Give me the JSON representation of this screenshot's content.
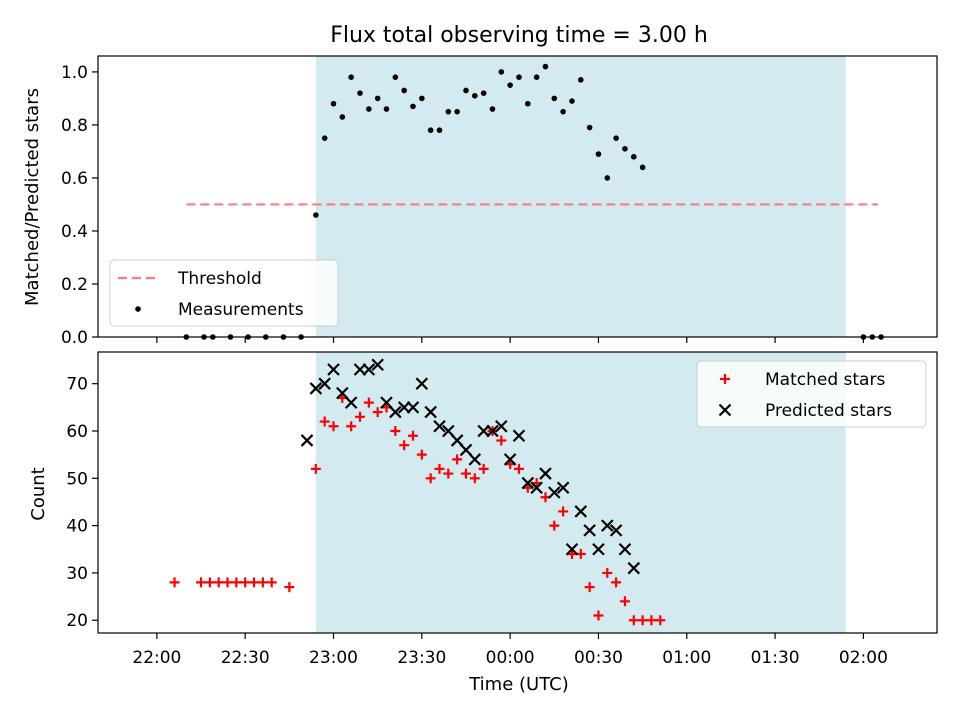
{
  "chart_data": [
    {
      "type": "scatter",
      "title": "Flux total observing time = 3.00 h",
      "xlabel": "",
      "ylabel": "Matched/Predicted stars",
      "ylim": [
        0,
        1.06
      ],
      "yticks": [
        "0.0",
        "0.2",
        "0.4",
        "0.6",
        "0.8",
        "1.0"
      ],
      "grid": false,
      "legend_position": "lower-left",
      "shaded_interval": {
        "start": "22:54",
        "end": "01:54",
        "color": "#d3eaf0"
      },
      "threshold": {
        "name": "Threshold",
        "value": 0.5,
        "x_start": "22:10",
        "x_end": "02:05",
        "color": "#f08080",
        "style": "dashed"
      },
      "series": [
        {
          "name": "Measurements",
          "marker": "dot",
          "color": "#000000",
          "x": [
            "22:10",
            "22:16",
            "22:19",
            "22:25",
            "22:31",
            "22:37",
            "22:43",
            "22:49",
            "22:51",
            "22:54",
            "22:57",
            "23:00",
            "23:03",
            "23:06",
            "23:09",
            "23:12",
            "23:15",
            "23:18",
            "23:21",
            "23:24",
            "23:27",
            "23:30",
            "23:33",
            "23:36",
            "23:39",
            "23:42",
            "23:45",
            "23:48",
            "23:51",
            "23:54",
            "23:57",
            "00:00",
            "00:03",
            "00:06",
            "00:09",
            "00:12",
            "00:15",
            "00:18",
            "00:21",
            "00:24",
            "00:27",
            "00:30",
            "00:33",
            "00:36",
            "00:39",
            "00:42",
            "00:45",
            "00:48",
            "00:51",
            "00:54",
            "00:57",
            "01:00",
            "01:03",
            "01:06",
            "01:09",
            "01:12",
            "01:15",
            "01:18",
            "01:21",
            "01:24",
            "01:27",
            "01:30",
            "01:33",
            "01:36",
            "01:39",
            "01:42",
            "01:45",
            "01:48",
            "01:51",
            "01:54",
            "01:57",
            "02:00",
            "02:03",
            "02:06",
            "02:09"
          ],
          "y": [
            0.0,
            0.0,
            0.0,
            0.0,
            0.0,
            0.0,
            0.0,
            0.0,
            null,
            0.46,
            0.75,
            0.88,
            0.83,
            0.98,
            0.92,
            0.86,
            0.9,
            0.86,
            0.98,
            0.93,
            0.87,
            0.9,
            0.78,
            0.78,
            0.85,
            0.85,
            0.93,
            0.91,
            0.92,
            0.86,
            1.0,
            0.95,
            0.98,
            0.88,
            0.98,
            1.02,
            0.9,
            0.85,
            0.89,
            0.97,
            0.79,
            0.69,
            0.6,
            0.75,
            0.71,
            0.68,
            0.64,
            null,
            null,
            null,
            null,
            null,
            null,
            null,
            null,
            null,
            null,
            null,
            null,
            null,
            null,
            null,
            null,
            null,
            null,
            null,
            null,
            null,
            null,
            null,
            null,
            0.0,
            0.0,
            0.0,
            null
          ]
        }
      ]
    },
    {
      "type": "scatter",
      "title": "",
      "xlabel": "Time (UTC)",
      "ylabel": "Count",
      "ylim": [
        17.3,
        76.7
      ],
      "yticks": [
        "20",
        "30",
        "40",
        "50",
        "60",
        "70"
      ],
      "xticks": [
        "22:00",
        "22:30",
        "23:00",
        "23:30",
        "00:00",
        "00:30",
        "01:00",
        "01:30",
        "02:00"
      ],
      "grid": false,
      "legend_position": "top-right",
      "shaded_interval": {
        "start": "22:54",
        "end": "01:54",
        "color": "#d3eaf0"
      },
      "series": [
        {
          "name": "Matched stars",
          "marker": "plus",
          "color": "#ff0000",
          "x": [
            "22:06",
            "22:12",
            "22:15",
            "22:18",
            "22:21",
            "22:24",
            "22:27",
            "22:30",
            "22:33",
            "22:36",
            "22:39",
            "22:42",
            "22:45",
            "22:48",
            "22:51",
            "22:54",
            "22:57",
            "23:00",
            "23:03",
            "23:06",
            "23:09",
            "23:12",
            "23:15",
            "23:18",
            "23:21",
            "23:24",
            "23:27",
            "23:30",
            "23:33",
            "23:36",
            "23:39",
            "23:42",
            "23:45",
            "23:48",
            "23:51",
            "23:54",
            "23:57",
            "00:00",
            "00:03",
            "00:06",
            "00:09",
            "00:12",
            "00:15",
            "00:18",
            "00:21",
            "00:24",
            "00:27",
            "00:30",
            "00:33",
            "00:36",
            "00:39",
            "00:42",
            "00:45",
            "00:48",
            "00:51",
            "00:54",
            "00:57",
            "01:00",
            "01:03",
            "01:06",
            "01:09",
            "01:12",
            "01:15",
            "01:18",
            "01:21",
            "01:24",
            "01:27",
            "01:30",
            "01:33",
            "01:36",
            "01:39",
            "01:42",
            "01:45",
            "01:48",
            "01:51",
            "01:54",
            "01:57",
            "02:00",
            "02:03",
            "02:06",
            "02:09"
          ],
          "y": [
            28,
            null,
            28,
            28,
            28,
            28,
            28,
            28,
            28,
            28,
            28,
            null,
            27,
            null,
            null,
            52,
            62,
            61,
            67,
            61,
            63,
            66,
            64,
            65,
            60,
            57,
            59,
            55,
            50,
            52,
            51,
            54,
            51,
            50,
            52,
            60,
            58,
            53,
            52,
            48,
            49,
            46,
            40,
            43,
            34,
            34,
            27,
            21,
            30,
            28,
            24,
            20,
            20,
            20,
            20,
            null,
            null,
            null,
            null,
            null,
            null,
            null,
            null,
            null,
            null,
            null,
            null,
            null,
            null,
            null,
            null,
            null,
            null,
            null,
            null,
            null,
            null,
            null,
            null,
            null,
            null
          ]
        },
        {
          "name": "Predicted stars",
          "marker": "x",
          "color": "#000000",
          "x": [
            "22:51",
            "22:54",
            "22:57",
            "23:00",
            "23:03",
            "23:06",
            "23:09",
            "23:12",
            "23:15",
            "23:18",
            "23:21",
            "23:24",
            "23:27",
            "23:30",
            "23:33",
            "23:36",
            "23:39",
            "23:42",
            "23:45",
            "23:48",
            "23:51",
            "23:54",
            "23:57",
            "00:00",
            "00:03",
            "00:06",
            "00:09",
            "00:12",
            "00:15",
            "00:18",
            "00:21",
            "00:24",
            "00:27",
            "00:30",
            "00:33",
            "00:36",
            "00:39",
            "00:42",
            "00:45",
            "00:48",
            "00:51",
            "00:54"
          ],
          "y": [
            58,
            69,
            70,
            73,
            68,
            66,
            73,
            73,
            74,
            66,
            64,
            65,
            65,
            70,
            64,
            61,
            60,
            58,
            56,
            54,
            60,
            60,
            61,
            54,
            59,
            49,
            48,
            51,
            47,
            48,
            35,
            43,
            39,
            35,
            40,
            39,
            35,
            31,
            null,
            null,
            null,
            null
          ]
        }
      ]
    }
  ]
}
